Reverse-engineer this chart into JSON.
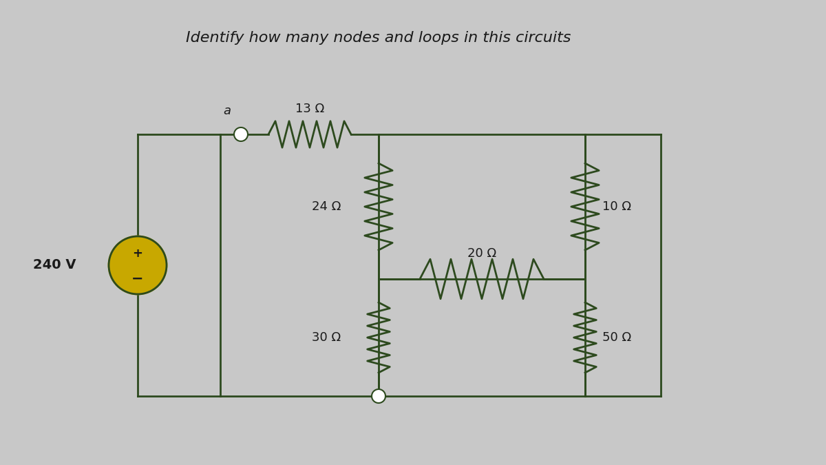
{
  "title": "Identify how many nodes and loops in this circuits",
  "title_fontsize": 16,
  "bg_color": "#c8c8c8",
  "circuit_color": "#556b2f",
  "line_color": "#2d4a1e",
  "text_color": "#1a1a1a",
  "voltage_source": "240 V",
  "resistors": {
    "R1": "13 Ω",
    "R2": "24 Ω",
    "R3": "10 Ω",
    "R4": "20 Ω",
    "R5": "30 Ω",
    "R6": "50 Ω"
  },
  "node_label": "a"
}
